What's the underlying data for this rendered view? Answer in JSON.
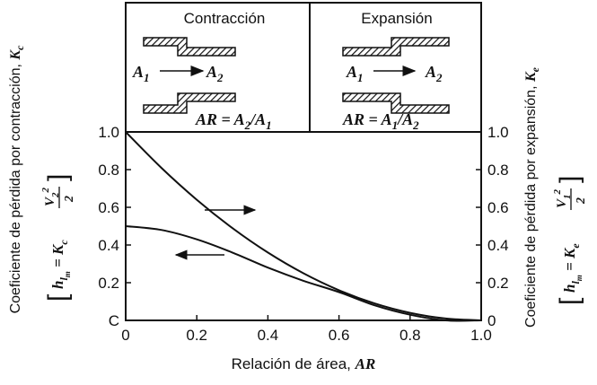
{
  "chart_data": {
    "type": "line",
    "xlabel": "Relación de área, AR",
    "xlabel_text": "Relación de área, ",
    "xlabel_var": "AR",
    "ylabel_left": "Coeficiente de pérdida por contracción, K",
    "ylabel_left_text": "Coeficiente de pérdida por contracción, ",
    "ylabel_left_var": "K",
    "ylabel_left_sub": "c",
    "ylabel_right": "Coeficiente de pérdida por expansión, K",
    "ylabel_right_text": "Coeficiente de pérdida por expansión, ",
    "ylabel_right_var": "K",
    "ylabel_right_sub": "e",
    "formula_left": {
      "lhs": "h",
      "lhs_sub": "l",
      "lhs_subsub": "m",
      "eq": " = ",
      "coef": "K",
      "coef_sub": "c",
      "vel": "V",
      "vel_sub": "2",
      "power": "2",
      "den": "2"
    },
    "formula_right": {
      "lhs": "h",
      "lhs_sub": "l",
      "lhs_subsub": "m",
      "eq": " = ",
      "coef": "K",
      "coef_sub": "e",
      "vel": "V",
      "vel_sub": "1",
      "power": "2",
      "den": "2"
    },
    "xlim": [
      0,
      1.0
    ],
    "ylim": [
      0,
      1.0
    ],
    "xticks": [
      "0",
      "0.2",
      "0.4",
      "0.6",
      "0.8",
      "1.0"
    ],
    "xtick_values": [
      0,
      0.2,
      0.4,
      0.6,
      0.8,
      1.0
    ],
    "yticks_left": [
      "C",
      "0.2",
      "0.4",
      "0.6",
      "0.8",
      "1.0"
    ],
    "yticks_right": [
      "0",
      "0.2",
      "0.4",
      "0.6",
      "0.8",
      "1.0"
    ],
    "ytick_values": [
      0,
      0.2,
      0.4,
      0.6,
      0.8,
      1.0
    ],
    "grid": false,
    "series": [
      {
        "axis": "right",
        "x": [
          0,
          0.1,
          0.2,
          0.3,
          0.4,
          0.5,
          0.6,
          0.7,
          0.8,
          0.9,
          1.0
        ],
        "y": [
          1.0,
          0.81,
          0.64,
          0.49,
          0.36,
          0.25,
          0.16,
          0.09,
          0.04,
          0.01,
          0
        ]
      },
      {
        "axis": "left",
        "x": [
          0,
          0.1,
          0.2,
          0.3,
          0.4,
          0.5,
          0.6,
          0.7,
          0.8,
          0.9,
          1.0
        ],
        "y": [
          0.5,
          0.48,
          0.43,
          0.36,
          0.28,
          0.21,
          0.15,
          0.08,
          0.03,
          0.0,
          0
        ]
      }
    ],
    "annotations": [
      {
        "kind": "arrow",
        "direction": "right",
        "label": "expansion curve → right axis"
      },
      {
        "kind": "arrow",
        "direction": "left",
        "label": "contraction curve → left axis"
      }
    ],
    "panels": {
      "contraction": {
        "title": "Contracción",
        "a1": "A",
        "a1_sub": "1",
        "a2": "A",
        "a2_sub": "2",
        "ar": "AR",
        "eq": " = ",
        "num": "A",
        "num_sub": "2",
        "slash": "/",
        "den": "A",
        "den_sub": "1"
      },
      "expansion": {
        "title": "Expansión",
        "a1": "A",
        "a1_sub": "1",
        "a2": "A",
        "a2_sub": "2",
        "ar": "AR",
        "eq": " = ",
        "num": "A",
        "num_sub": "1",
        "slash": "/",
        "den": "A",
        "den_sub": "2"
      }
    }
  }
}
